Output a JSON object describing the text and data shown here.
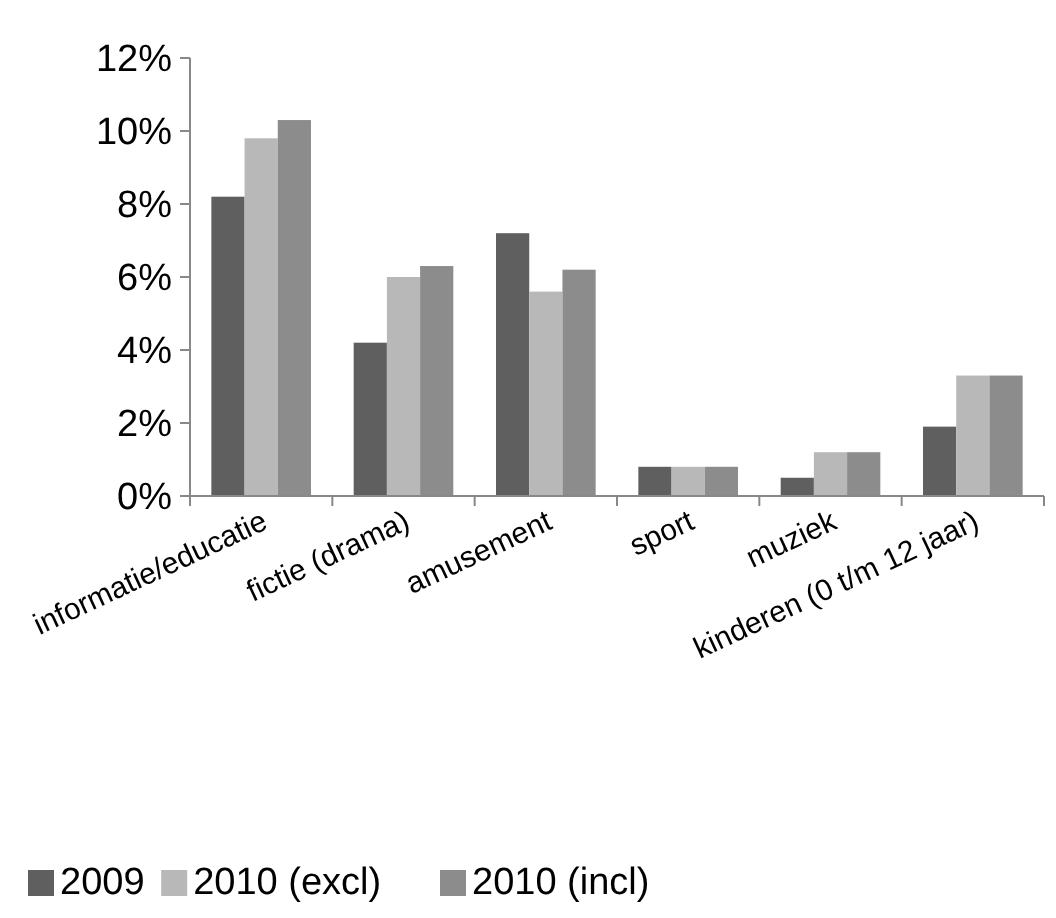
{
  "chart_data": {
    "type": "bar",
    "categories": [
      "informatie/educatie",
      "fictie (drama)",
      "amusement",
      "sport",
      "muziek",
      "kinderen (0 t/m 12 jaar)"
    ],
    "series": [
      {
        "name": "2009",
        "color": "#5f5f5f",
        "values": [
          8.2,
          4.2,
          7.2,
          0.8,
          0.5,
          1.9
        ]
      },
      {
        "name": "2010 (excl)",
        "color": "#b8b8b8",
        "values": [
          9.8,
          6.0,
          5.6,
          0.8,
          1.2,
          3.3
        ]
      },
      {
        "name": "2010 (incl)",
        "color": "#8c8c8c",
        "values": [
          10.3,
          6.3,
          6.2,
          0.8,
          1.2,
          3.3
        ]
      }
    ],
    "ylim": [
      0,
      12
    ],
    "yticks": [
      {
        "value": 0,
        "label": "0%"
      },
      {
        "value": 2,
        "label": "2%"
      },
      {
        "value": 4,
        "label": "4%"
      },
      {
        "value": 6,
        "label": "6%"
      },
      {
        "value": 8,
        "label": "8%"
      },
      {
        "value": 10,
        "label": "10%"
      },
      {
        "value": 12,
        "label": "12%"
      }
    ],
    "grid": false,
    "legend": "bottom"
  }
}
